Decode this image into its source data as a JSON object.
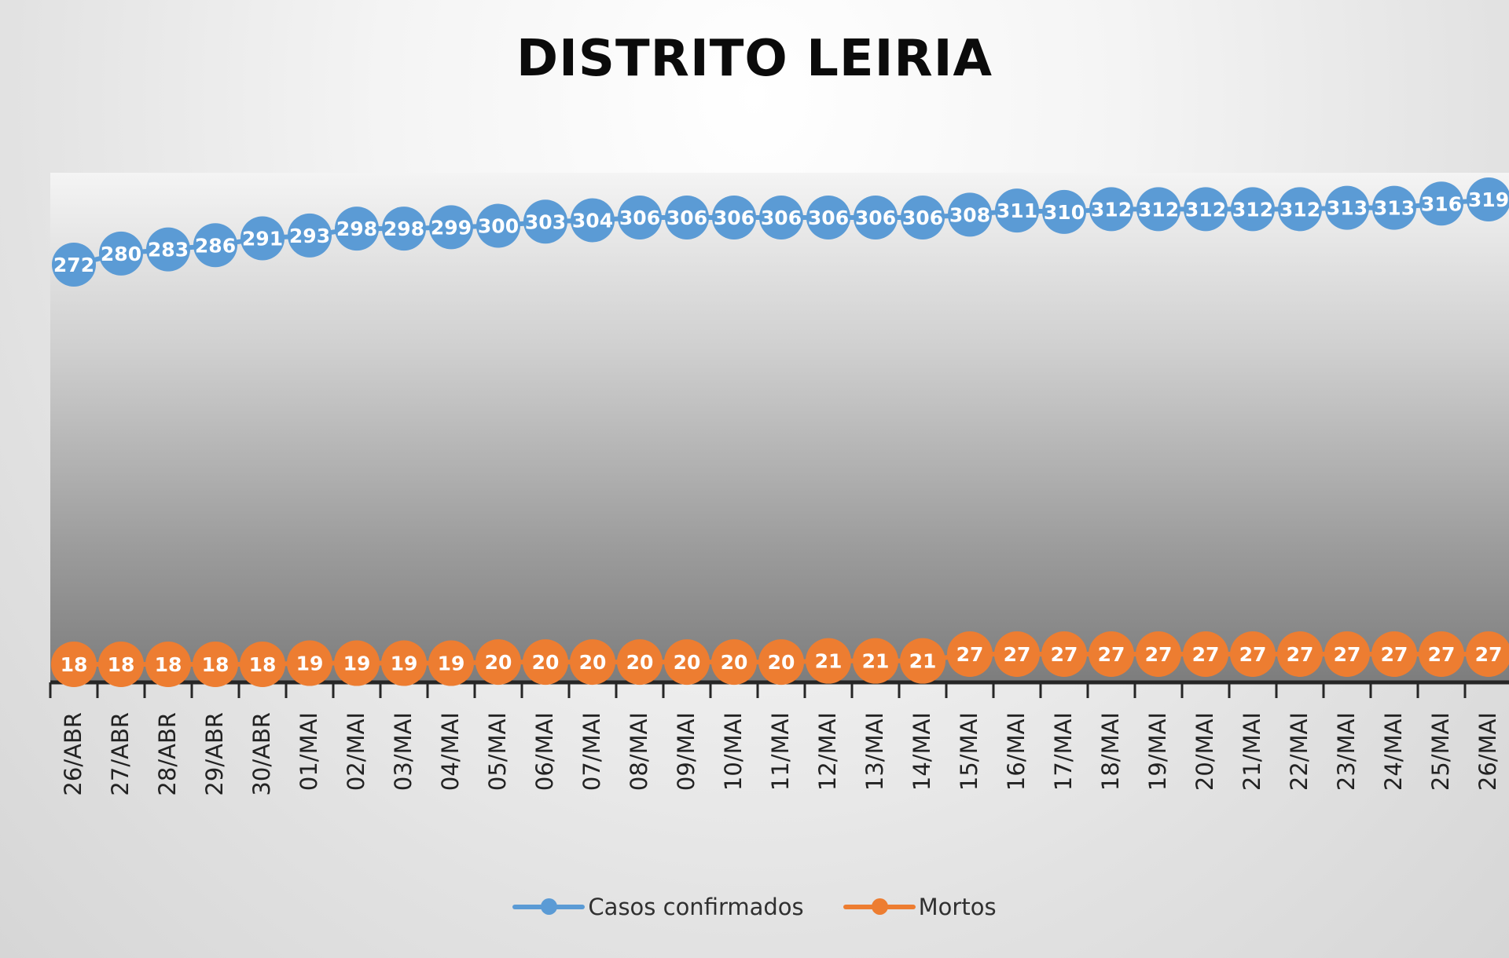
{
  "chart_data": {
    "type": "line",
    "title": "DISTRITO LEIRIA",
    "xlabel": "",
    "ylabel": "",
    "categories": [
      "26/ABR",
      "27/ABR",
      "28/ABR",
      "29/ABR",
      "30/ABR",
      "01/MAI",
      "02/MAI",
      "03/MAI",
      "04/MAI",
      "05/MAI",
      "06/MAI",
      "07/MAI",
      "08/MAI",
      "09/MAI",
      "10/MAI",
      "11/MAI",
      "12/MAI",
      "13/MAI",
      "14/MAI",
      "15/MAI",
      "16/MAI",
      "17/MAI",
      "18/MAI",
      "19/MAI",
      "20/MAI",
      "21/MAI",
      "22/MAI",
      "23/MAI",
      "24/MAI",
      "25/MAI",
      "26/MAI"
    ],
    "series": [
      {
        "name": "Casos confirmados",
        "color": "#5b9bd5",
        "values": [
          272,
          280,
          283,
          286,
          291,
          293,
          298,
          298,
          299,
          300,
          303,
          304,
          306,
          306,
          306,
          306,
          306,
          306,
          306,
          308,
          311,
          310,
          312,
          312,
          312,
          312,
          312,
          313,
          313,
          316,
          319
        ]
      },
      {
        "name": "Mortos",
        "color": "#ed7d31",
        "values": [
          18,
          18,
          18,
          18,
          18,
          19,
          19,
          19,
          19,
          20,
          20,
          20,
          20,
          20,
          20,
          20,
          21,
          21,
          21,
          27,
          27,
          27,
          27,
          27,
          27,
          27,
          27,
          27,
          27,
          27,
          27
        ]
      }
    ],
    "legend_position": "bottom",
    "grid": false,
    "data_labels": true
  }
}
